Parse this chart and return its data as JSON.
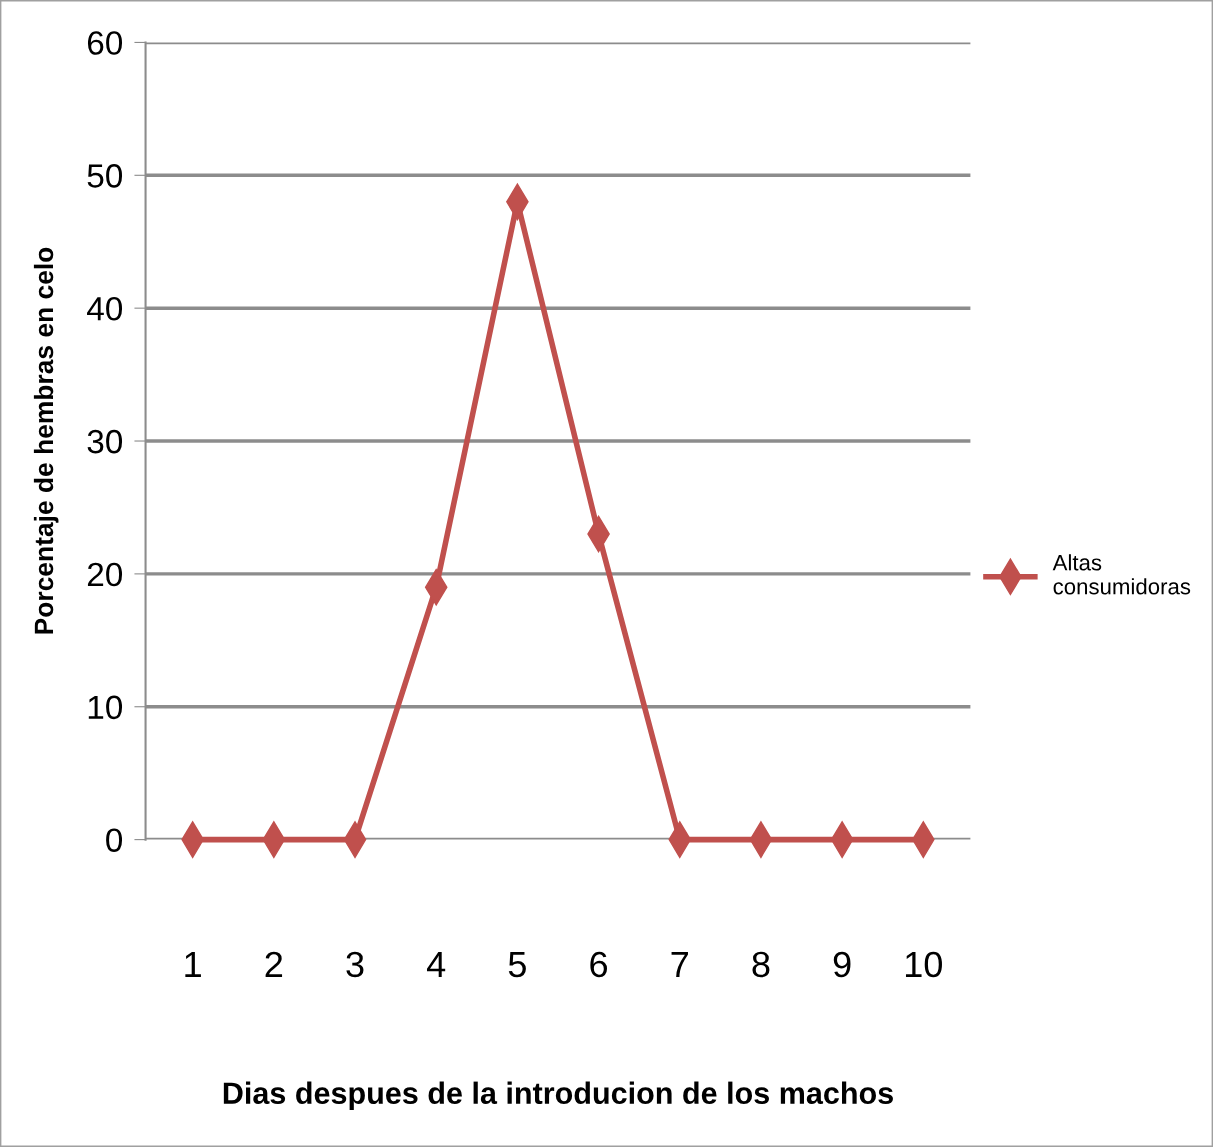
{
  "chart_data": {
    "type": "line",
    "xlabel": "Dias despues de la introducion de los machos",
    "ylabel": "Porcentaje de hembras en celo",
    "categories": [
      "1",
      "2",
      "3",
      "4",
      "5",
      "6",
      "7",
      "8",
      "9",
      "10"
    ],
    "series": [
      {
        "name": "Altas consumidoras",
        "color": "#c0504d",
        "values": [
          0,
          0,
          0,
          19,
          48,
          23,
          0,
          0,
          0,
          0
        ]
      }
    ],
    "ylim": [
      0,
      60
    ],
    "yticks": [
      0,
      10,
      20,
      30,
      40,
      50,
      60
    ],
    "grid": "y",
    "legend": "right",
    "marker": "diamond",
    "line_style": "solid"
  }
}
